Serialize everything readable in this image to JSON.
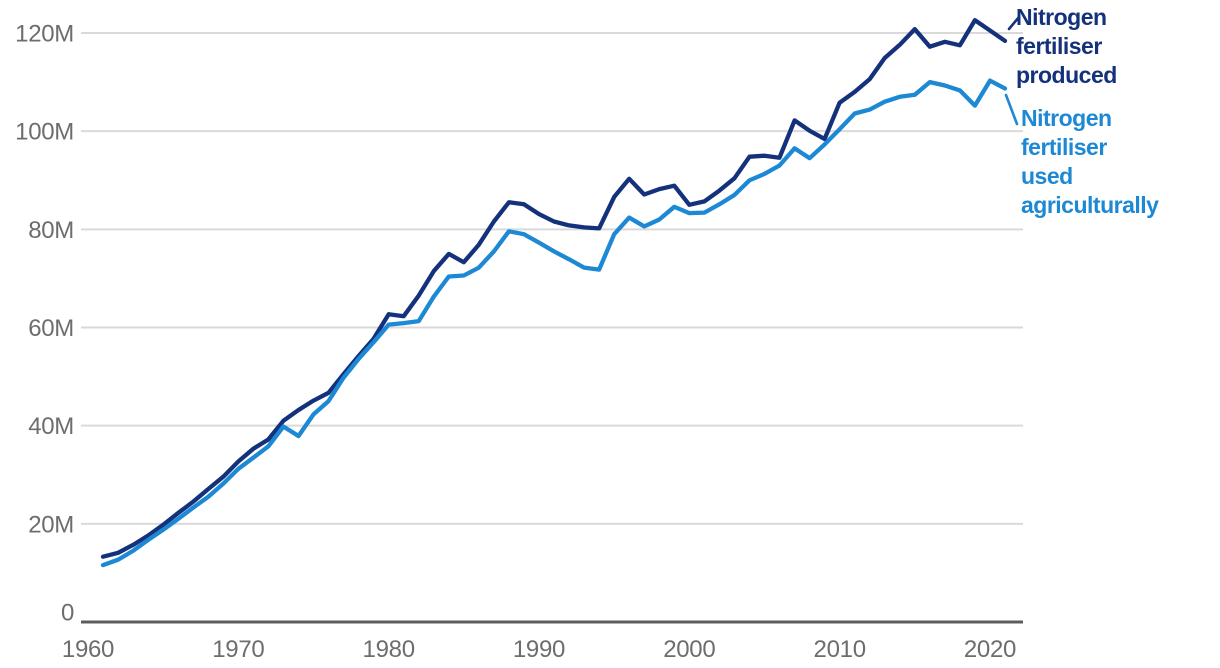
{
  "chart_data": {
    "type": "line",
    "grid": "horizontal",
    "legend_position": "right",
    "xlim": [
      1960,
      2022
    ],
    "ylim": [
      0,
      125
    ],
    "years": [
      1961,
      1962,
      1963,
      1964,
      1965,
      1966,
      1967,
      1968,
      1969,
      1970,
      1971,
      1972,
      1973,
      1974,
      1975,
      1976,
      1977,
      1978,
      1979,
      1980,
      1981,
      1982,
      1983,
      1984,
      1985,
      1986,
      1987,
      1988,
      1989,
      1990,
      1991,
      1992,
      1993,
      1994,
      1995,
      1996,
      1997,
      1998,
      1999,
      2000,
      2001,
      2002,
      2003,
      2004,
      2005,
      2006,
      2007,
      2008,
      2009,
      2010,
      2011,
      2012,
      2013,
      2014,
      2015,
      2016,
      2017,
      2018,
      2019,
      2020,
      2021
    ],
    "series": [
      {
        "name": "Nitrogen fertiliser produced",
        "legend_text": "Nitrogen\nfertiliser\nproduced",
        "color": "#14317c",
        "values": [
          13.3,
          14.1,
          15.7,
          17.6,
          19.8,
          22.2,
          24.5,
          27.1,
          29.6,
          32.7,
          35.3,
          37.2,
          41,
          43.2,
          45.1,
          46.7,
          50.5,
          54.2,
          57.7,
          62.7,
          62.3,
          66.5,
          71.5,
          75,
          73.3,
          76.9,
          81.6,
          85.5,
          85.1,
          83.1,
          81.6,
          80.8,
          80.4,
          80.2,
          86.6,
          90.3,
          87.1,
          88.2,
          88.9,
          85,
          85.7,
          87.9,
          90.4,
          94.8,
          95,
          94.6,
          102.2,
          100.1,
          98.4,
          105.8,
          108,
          110.6,
          114.9,
          117.6,
          120.8,
          117.2,
          118.2,
          117.5,
          122.6,
          120.5,
          118.4
        ]
      },
      {
        "name": "Nitrogen fertiliser used agriculturally",
        "legend_text": "Nitrogen\nfertiliser\nused\nagriculturally",
        "color": "#1d89d4",
        "values": [
          11.6,
          12.7,
          14.5,
          16.7,
          18.8,
          21,
          23.3,
          25.5,
          28.2,
          31.2,
          33.5,
          35.8,
          39.8,
          37.9,
          42.3,
          45,
          49.8,
          53.6,
          57,
          60.6,
          60.9,
          61.3,
          66.3,
          70.4,
          70.6,
          72.2,
          75.5,
          79.6,
          79,
          77.3,
          75.5,
          73.9,
          72.2,
          71.8,
          79,
          82.4,
          80.6,
          82,
          84.6,
          83.3,
          83.4,
          85.1,
          87,
          90,
          91.3,
          93,
          96.5,
          94.5,
          97.3,
          100.4,
          103.6,
          104.4,
          106,
          107,
          107.4,
          110,
          109.3,
          108.3,
          105.2,
          110.3,
          108.7
        ]
      }
    ],
    "y_ticks": [
      {
        "value": 0,
        "label": "0"
      },
      {
        "value": 20,
        "label": "20M"
      },
      {
        "value": 40,
        "label": "40M"
      },
      {
        "value": 60,
        "label": "60M"
      },
      {
        "value": 80,
        "label": "80M"
      },
      {
        "value": 100,
        "label": "100M"
      },
      {
        "value": 120,
        "label": "120M"
      }
    ],
    "x_ticks": [
      {
        "value": 1960,
        "label": "1960"
      },
      {
        "value": 1970,
        "label": "1970"
      },
      {
        "value": 1980,
        "label": "1980"
      },
      {
        "value": 1990,
        "label": "1990"
      },
      {
        "value": 2000,
        "label": "2000"
      },
      {
        "value": 2010,
        "label": "2010"
      },
      {
        "value": 2020,
        "label": "2020"
      }
    ],
    "colors": {
      "gridline": "#d9d9d9",
      "axis_baseline": "#5d5d5d",
      "tick_label": "#6d6d6d"
    }
  }
}
